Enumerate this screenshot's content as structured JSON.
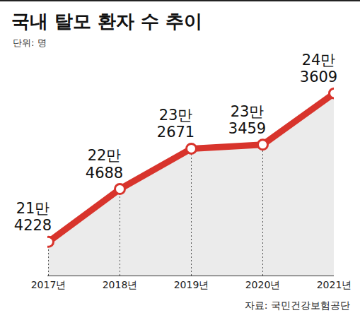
{
  "chart_data": {
    "type": "line",
    "title": "국내 탈모 환자 수 추이",
    "subtitle": "단위: 명",
    "caption": "자료: 국민건강보험공단",
    "categories": [
      "2017년",
      "2018년",
      "2019년",
      "2020년",
      "2021년"
    ],
    "values": [
      214228,
      224688,
      232671,
      233459,
      243609
    ],
    "value_labels": [
      "21만 4228",
      "22만 4688",
      "23만 2671",
      "23만 3459",
      "24만 3609"
    ],
    "color": "#d8342c",
    "marker": "circle",
    "ylim": [
      207500,
      252500
    ],
    "data_labels": true,
    "grid": false,
    "tick_labels": "x"
  }
}
